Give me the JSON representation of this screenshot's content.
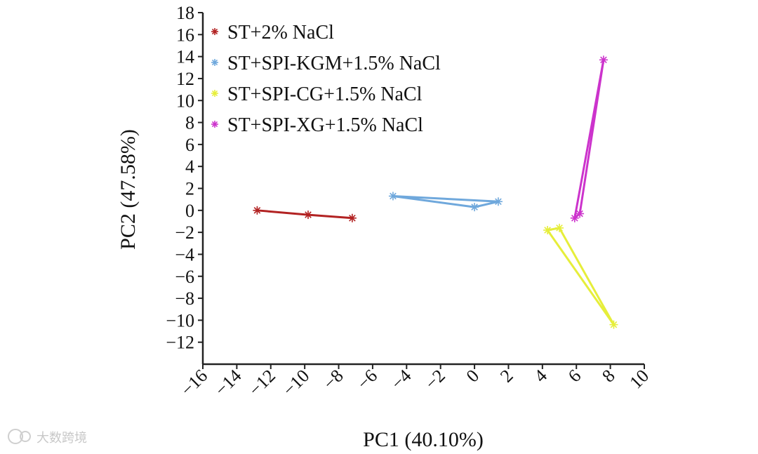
{
  "chart_data": {
    "type": "scatter",
    "xlabel": "PC1 (40.10%)",
    "ylabel": "PC2 (47.58%)",
    "xlim": [
      -16,
      10
    ],
    "ylim": [
      -14,
      18
    ],
    "x_ticks": [
      -16,
      -14,
      -12,
      -10,
      -8,
      -6,
      -4,
      -2,
      0,
      2,
      4,
      6,
      8,
      10
    ],
    "y_ticks": [
      18,
      16,
      14,
      12,
      10,
      8,
      6,
      4,
      2,
      0,
      -2,
      -4,
      -6,
      -8,
      -10,
      -12
    ],
    "x_tick_labels": [
      "−16",
      "−14",
      "−12",
      "−10",
      "−8",
      "−6",
      "−4",
      "−2",
      "0",
      "2",
      "4",
      "6",
      "8",
      "10"
    ],
    "y_tick_labels": [
      "18",
      "16",
      "14",
      "12",
      "10",
      "8",
      "6",
      "4",
      "2",
      "0",
      "−2",
      "−4",
      "−6",
      "−8",
      "−10",
      "−12"
    ],
    "legend_position": "top-left",
    "series": [
      {
        "name": "ST+2% NaCl",
        "color": "#b22222",
        "points": [
          [
            -12.8,
            0.0
          ],
          [
            -9.8,
            -0.4
          ],
          [
            -7.2,
            -0.7
          ],
          [
            -9.8,
            -0.4
          ],
          [
            -12.8,
            0.0
          ]
        ]
      },
      {
        "name": "ST+SPI-KGM+1.5% NaCl",
        "color": "#6fa8dc",
        "points": [
          [
            -4.8,
            1.3
          ],
          [
            0.0,
            0.3
          ],
          [
            1.4,
            0.8
          ],
          [
            -4.8,
            1.3
          ]
        ]
      },
      {
        "name": "ST+SPI-CG+1.5% NaCl",
        "color": "#e6ee3a",
        "points": [
          [
            4.3,
            -1.8
          ],
          [
            5.0,
            -1.6
          ],
          [
            8.2,
            -10.4
          ],
          [
            4.3,
            -1.8
          ]
        ]
      },
      {
        "name": "ST+SPI-XG+1.5% NaCl",
        "color": "#cc33cc",
        "points": [
          [
            5.9,
            -0.7
          ],
          [
            6.2,
            -0.3
          ],
          [
            7.6,
            13.7
          ],
          [
            5.9,
            -0.7
          ]
        ]
      }
    ]
  },
  "watermark_text": "大数跨境"
}
